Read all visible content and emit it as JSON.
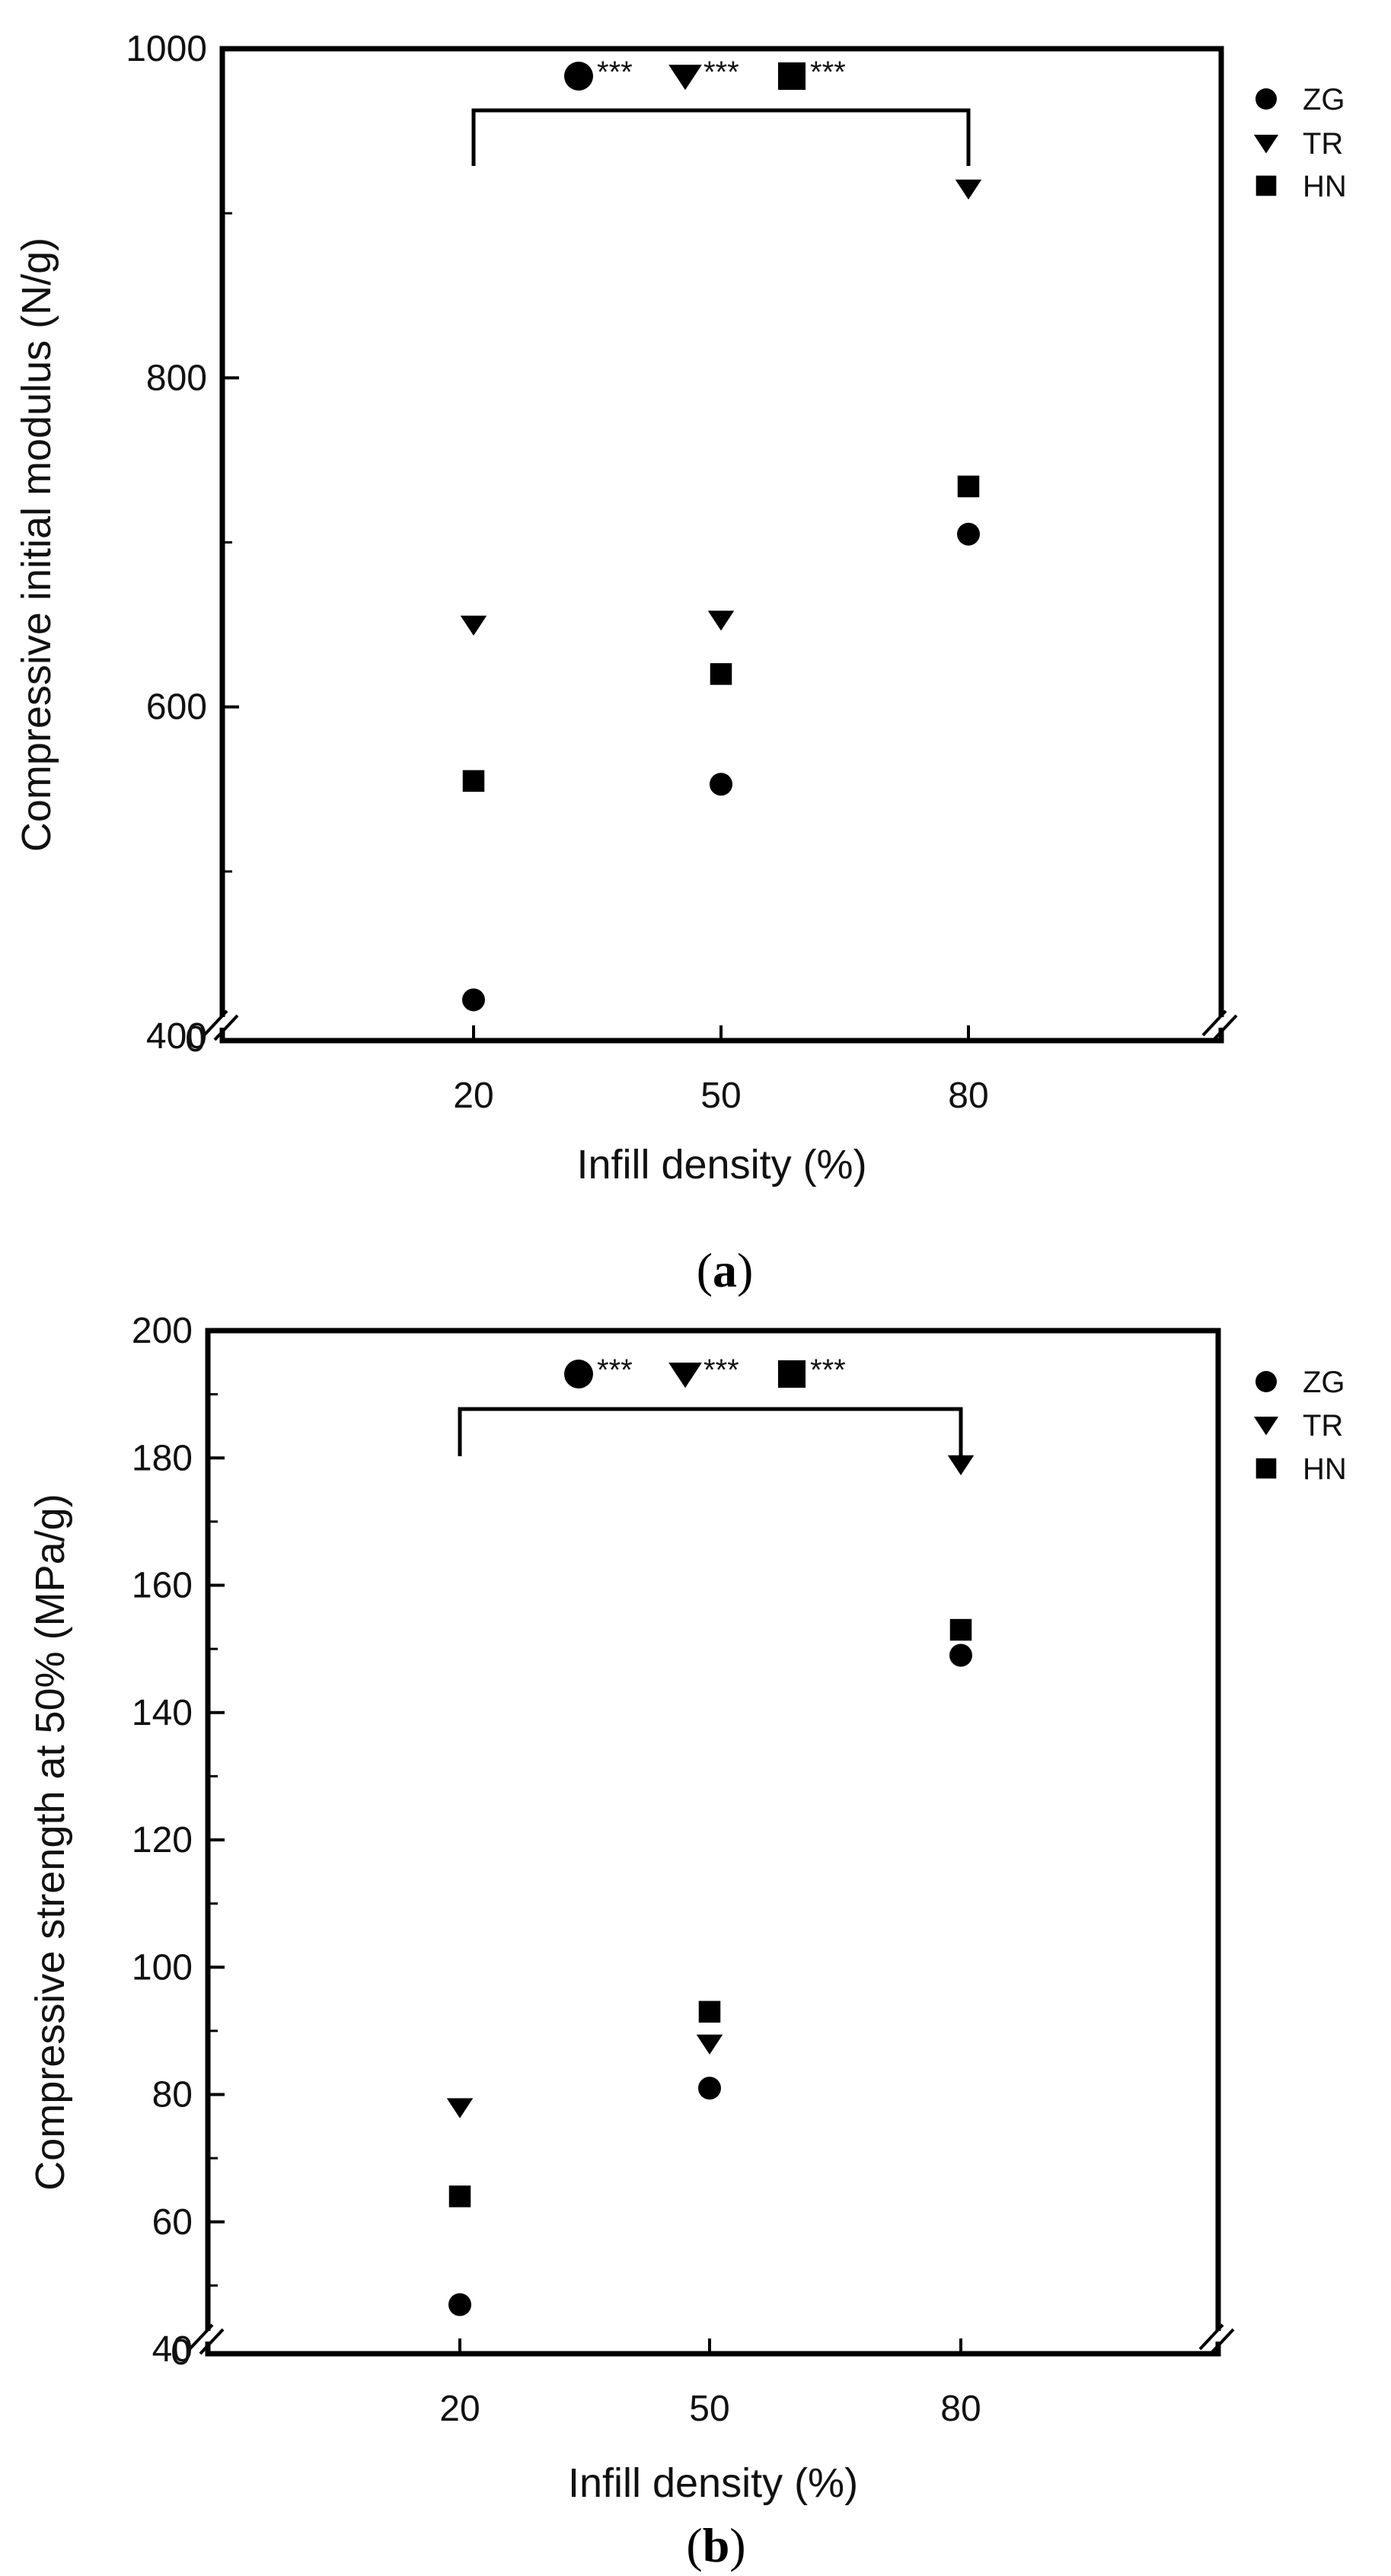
{
  "chart_data": [
    {
      "type": "scatter",
      "panel_label": "(a)",
      "panel_letter": "a",
      "xlabel": "Infill density (%)",
      "ylabel": "Compressive initial modulus (N/g)",
      "categories": [
        "20",
        "50",
        "80"
      ],
      "x": [
        20,
        50,
        80
      ],
      "yticks": [
        400,
        600,
        800,
        1000
      ],
      "ylim": [
        400,
        1000
      ],
      "y_break_label": "0",
      "legend": [
        "ZG",
        "TR",
        "HN"
      ],
      "legend_position": "top-right",
      "series": [
        {
          "name": "ZG",
          "marker": "circle",
          "values": [
            422,
            553,
            705
          ]
        },
        {
          "name": "TR",
          "marker": "triangle-down",
          "values": [
            650,
            653,
            915
          ]
        },
        {
          "name": "HN",
          "marker": "square",
          "values": [
            555,
            620,
            734
          ]
        }
      ],
      "significance": {
        "from": "20",
        "to": "80",
        "label": "***",
        "markers": [
          "circle",
          "triangle-down",
          "square"
        ]
      }
    },
    {
      "type": "scatter",
      "panel_label": "(b)",
      "panel_letter": "b",
      "xlabel": "Infill density (%)",
      "ylabel": "Compressive strength at 50% (MPa/g)",
      "categories": [
        "20",
        "50",
        "80"
      ],
      "x": [
        20,
        50,
        80
      ],
      "yticks": [
        40,
        60,
        80,
        100,
        120,
        140,
        160,
        180,
        200
      ],
      "ylim": [
        40,
        200
      ],
      "y_break_label": "0",
      "legend": [
        "ZG",
        "TR",
        "HN"
      ],
      "legend_position": "top-right",
      "series": [
        {
          "name": "ZG",
          "marker": "circle",
          "values": [
            47,
            81,
            149
          ]
        },
        {
          "name": "TR",
          "marker": "triangle-down",
          "values": [
            78,
            88,
            179
          ]
        },
        {
          "name": "HN",
          "marker": "square",
          "values": [
            64,
            93,
            153
          ]
        }
      ],
      "significance": {
        "from": "20",
        "to": "80",
        "label": "***",
        "markers": [
          "circle",
          "triangle-down",
          "square"
        ]
      }
    }
  ]
}
